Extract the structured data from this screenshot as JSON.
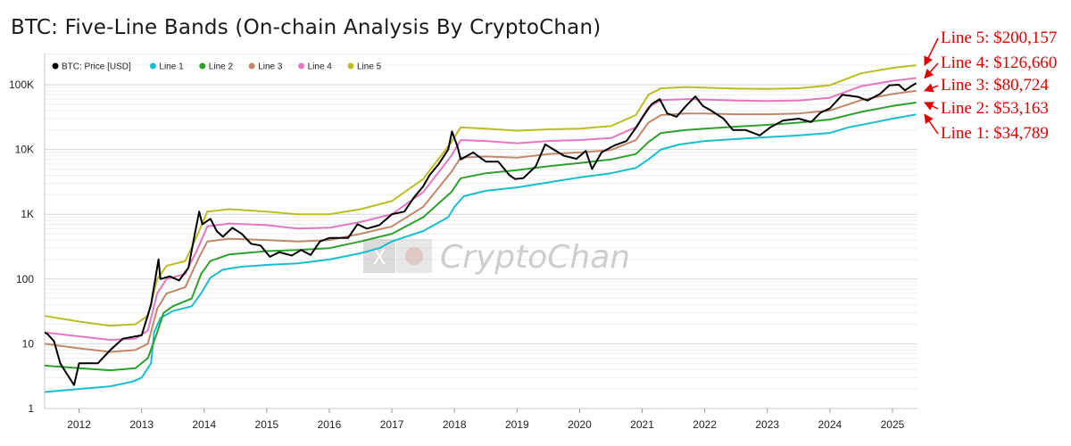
{
  "chart_data": {
    "type": "line",
    "title": "BTC: Five-Line Bands (On-chain Analysis By CryptoChan)",
    "y_scale": "log",
    "ylim": [
      1,
      200000
    ],
    "xlim": [
      2011.45,
      2025.4
    ],
    "grid": true,
    "legend_position": "top-left",
    "y_ticks": [
      {
        "value": 1,
        "label": "1"
      },
      {
        "value": 10,
        "label": "10"
      },
      {
        "value": 100,
        "label": "100"
      },
      {
        "value": 1000,
        "label": "1K"
      },
      {
        "value": 10000,
        "label": "10K"
      },
      {
        "value": 100000,
        "label": "100K"
      }
    ],
    "x_ticks": [
      "2012",
      "2013",
      "2014",
      "2015",
      "2016",
      "2017",
      "2018",
      "2019",
      "2020",
      "2021",
      "2022",
      "2023",
      "2024",
      "2025"
    ],
    "series": [
      {
        "name": "BTC: Price [USD]",
        "color": "#000000",
        "points": [
          [
            2011.45,
            15
          ],
          [
            2011.5,
            14
          ],
          [
            2011.6,
            11
          ],
          [
            2011.7,
            5
          ],
          [
            2011.8,
            3.5
          ],
          [
            2011.92,
            2.3
          ],
          [
            2012.0,
            5
          ],
          [
            2012.15,
            5
          ],
          [
            2012.3,
            5
          ],
          [
            2012.5,
            8
          ],
          [
            2012.7,
            12
          ],
          [
            2012.9,
            13
          ],
          [
            2013.0,
            13.5
          ],
          [
            2013.15,
            40
          ],
          [
            2013.27,
            200
          ],
          [
            2013.3,
            100
          ],
          [
            2013.45,
            110
          ],
          [
            2013.6,
            95
          ],
          [
            2013.75,
            150
          ],
          [
            2013.85,
            500
          ],
          [
            2013.92,
            1100
          ],
          [
            2013.97,
            700
          ],
          [
            2014.1,
            850
          ],
          [
            2014.2,
            550
          ],
          [
            2014.3,
            450
          ],
          [
            2014.45,
            620
          ],
          [
            2014.6,
            500
          ],
          [
            2014.75,
            350
          ],
          [
            2014.9,
            330
          ],
          [
            2015.05,
            220
          ],
          [
            2015.2,
            260
          ],
          [
            2015.4,
            230
          ],
          [
            2015.55,
            280
          ],
          [
            2015.7,
            235
          ],
          [
            2015.85,
            380
          ],
          [
            2016.0,
            430
          ],
          [
            2016.3,
            430
          ],
          [
            2016.45,
            700
          ],
          [
            2016.6,
            600
          ],
          [
            2016.8,
            680
          ],
          [
            2017.0,
            1000
          ],
          [
            2017.2,
            1100
          ],
          [
            2017.35,
            1800
          ],
          [
            2017.5,
            2700
          ],
          [
            2017.6,
            4000
          ],
          [
            2017.75,
            6000
          ],
          [
            2017.9,
            10000
          ],
          [
            2017.96,
            19000
          ],
          [
            2018.05,
            11000
          ],
          [
            2018.1,
            7000
          ],
          [
            2018.3,
            9000
          ],
          [
            2018.5,
            6500
          ],
          [
            2018.7,
            6500
          ],
          [
            2018.88,
            4000
          ],
          [
            2018.97,
            3500
          ],
          [
            2019.1,
            3600
          ],
          [
            2019.3,
            5500
          ],
          [
            2019.45,
            12000
          ],
          [
            2019.55,
            10500
          ],
          [
            2019.75,
            8000
          ],
          [
            2019.95,
            7200
          ],
          [
            2020.1,
            9500
          ],
          [
            2020.2,
            5000
          ],
          [
            2020.35,
            9000
          ],
          [
            2020.55,
            11500
          ],
          [
            2020.75,
            13500
          ],
          [
            2020.92,
            23000
          ],
          [
            2021.02,
            33000
          ],
          [
            2021.15,
            50000
          ],
          [
            2021.28,
            60000
          ],
          [
            2021.4,
            36000
          ],
          [
            2021.55,
            32000
          ],
          [
            2021.7,
            47000
          ],
          [
            2021.85,
            66000
          ],
          [
            2021.97,
            47000
          ],
          [
            2022.1,
            40000
          ],
          [
            2022.3,
            30000
          ],
          [
            2022.45,
            20000
          ],
          [
            2022.65,
            20000
          ],
          [
            2022.88,
            16500
          ],
          [
            2023.05,
            22000
          ],
          [
            2023.25,
            28000
          ],
          [
            2023.5,
            30000
          ],
          [
            2023.7,
            26500
          ],
          [
            2023.85,
            37000
          ],
          [
            2024.0,
            43000
          ],
          [
            2024.2,
            70000
          ],
          [
            2024.45,
            65000
          ],
          [
            2024.6,
            57000
          ],
          [
            2024.8,
            72000
          ],
          [
            2024.95,
            98000
          ],
          [
            2025.1,
            100000
          ],
          [
            2025.2,
            82000
          ],
          [
            2025.3,
            95000
          ],
          [
            2025.38,
            106000
          ]
        ]
      },
      {
        "name": "Line 1",
        "color": "#17becf",
        "points": [
          [
            2011.45,
            1.8
          ],
          [
            2012.0,
            2.0
          ],
          [
            2012.5,
            2.2
          ],
          [
            2012.85,
            2.6
          ],
          [
            2013.0,
            3.0
          ],
          [
            2013.15,
            5
          ],
          [
            2013.2,
            15
          ],
          [
            2013.3,
            25
          ],
          [
            2013.5,
            32
          ],
          [
            2013.8,
            38
          ],
          [
            2013.95,
            60
          ],
          [
            2014.1,
            105
          ],
          [
            2014.3,
            140
          ],
          [
            2014.6,
            155
          ],
          [
            2015.0,
            165
          ],
          [
            2015.5,
            175
          ],
          [
            2016.0,
            200
          ],
          [
            2016.5,
            250
          ],
          [
            2016.8,
            300
          ],
          [
            2017.0,
            380
          ],
          [
            2017.5,
            550
          ],
          [
            2017.9,
            900
          ],
          [
            2018.0,
            1300
          ],
          [
            2018.15,
            1900
          ],
          [
            2018.5,
            2300
          ],
          [
            2019.0,
            2600
          ],
          [
            2019.5,
            3100
          ],
          [
            2020.0,
            3700
          ],
          [
            2020.5,
            4300
          ],
          [
            2020.9,
            5200
          ],
          [
            2021.1,
            7000
          ],
          [
            2021.3,
            10000
          ],
          [
            2021.6,
            12000
          ],
          [
            2022.0,
            13500
          ],
          [
            2022.5,
            14500
          ],
          [
            2023.0,
            15500
          ],
          [
            2023.5,
            16500
          ],
          [
            2024.0,
            18000
          ],
          [
            2024.3,
            22000
          ],
          [
            2024.6,
            25000
          ],
          [
            2025.0,
            30000
          ],
          [
            2025.38,
            34789
          ]
        ]
      },
      {
        "name": "Line 2",
        "color": "#2ca02c",
        "points": [
          [
            2011.45,
            4.6
          ],
          [
            2012.0,
            4.2
          ],
          [
            2012.5,
            3.9
          ],
          [
            2012.9,
            4.2
          ],
          [
            2013.1,
            6
          ],
          [
            2013.25,
            15
          ],
          [
            2013.35,
            30
          ],
          [
            2013.5,
            38
          ],
          [
            2013.8,
            50
          ],
          [
            2013.95,
            120
          ],
          [
            2014.1,
            190
          ],
          [
            2014.4,
            240
          ],
          [
            2015.0,
            270
          ],
          [
            2015.5,
            280
          ],
          [
            2016.0,
            300
          ],
          [
            2016.5,
            380
          ],
          [
            2017.0,
            500
          ],
          [
            2017.5,
            900
          ],
          [
            2017.95,
            2200
          ],
          [
            2018.1,
            3600
          ],
          [
            2018.5,
            4300
          ],
          [
            2019.0,
            4800
          ],
          [
            2019.5,
            5500
          ],
          [
            2020.0,
            6200
          ],
          [
            2020.5,
            7000
          ],
          [
            2020.9,
            8500
          ],
          [
            2021.1,
            13000
          ],
          [
            2021.3,
            18000
          ],
          [
            2021.7,
            20000
          ],
          [
            2022.0,
            21000
          ],
          [
            2022.5,
            22500
          ],
          [
            2023.0,
            24000
          ],
          [
            2023.5,
            26000
          ],
          [
            2024.0,
            29000
          ],
          [
            2024.5,
            38000
          ],
          [
            2025.0,
            47000
          ],
          [
            2025.38,
            53163
          ]
        ]
      },
      {
        "name": "Line 3",
        "color": "#c0876a",
        "points": [
          [
            2011.45,
            10
          ],
          [
            2012.0,
            8.5
          ],
          [
            2012.5,
            7.5
          ],
          [
            2012.9,
            8
          ],
          [
            2013.1,
            10
          ],
          [
            2013.25,
            35
          ],
          [
            2013.4,
            60
          ],
          [
            2013.7,
            75
          ],
          [
            2013.9,
            200
          ],
          [
            2014.05,
            380
          ],
          [
            2014.4,
            420
          ],
          [
            2015.0,
            400
          ],
          [
            2015.5,
            380
          ],
          [
            2016.0,
            400
          ],
          [
            2016.5,
            500
          ],
          [
            2017.0,
            650
          ],
          [
            2017.5,
            1300
          ],
          [
            2017.95,
            4500
          ],
          [
            2018.1,
            7500
          ],
          [
            2018.5,
            7800
          ],
          [
            2019.0,
            7500
          ],
          [
            2019.5,
            8500
          ],
          [
            2020.0,
            9000
          ],
          [
            2020.5,
            9800
          ],
          [
            2020.9,
            14000
          ],
          [
            2021.1,
            26000
          ],
          [
            2021.3,
            34000
          ],
          [
            2021.7,
            36000
          ],
          [
            2022.0,
            36000
          ],
          [
            2022.5,
            35000
          ],
          [
            2023.0,
            35000
          ],
          [
            2023.5,
            36000
          ],
          [
            2024.0,
            40000
          ],
          [
            2024.5,
            58000
          ],
          [
            2025.0,
            72000
          ],
          [
            2025.38,
            80724
          ]
        ]
      },
      {
        "name": "Line 4",
        "color": "#e377c2",
        "points": [
          [
            2011.45,
            15
          ],
          [
            2012.0,
            13
          ],
          [
            2012.5,
            11.5
          ],
          [
            2012.9,
            12
          ],
          [
            2013.1,
            16
          ],
          [
            2013.25,
            60
          ],
          [
            2013.4,
            100
          ],
          [
            2013.7,
            120
          ],
          [
            2013.9,
            300
          ],
          [
            2014.05,
            650
          ],
          [
            2014.4,
            720
          ],
          [
            2015.0,
            680
          ],
          [
            2015.5,
            600
          ],
          [
            2016.0,
            620
          ],
          [
            2016.5,
            760
          ],
          [
            2017.0,
            1000
          ],
          [
            2017.5,
            2200
          ],
          [
            2017.95,
            8000
          ],
          [
            2018.1,
            14000
          ],
          [
            2018.5,
            13500
          ],
          [
            2019.0,
            12500
          ],
          [
            2019.5,
            13500
          ],
          [
            2020.0,
            14000
          ],
          [
            2020.5,
            15000
          ],
          [
            2020.9,
            22000
          ],
          [
            2021.1,
            45000
          ],
          [
            2021.3,
            58000
          ],
          [
            2021.7,
            60000
          ],
          [
            2022.0,
            59000
          ],
          [
            2022.5,
            57000
          ],
          [
            2023.0,
            56000
          ],
          [
            2023.5,
            57000
          ],
          [
            2024.0,
            63000
          ],
          [
            2024.5,
            95000
          ],
          [
            2025.0,
            115000
          ],
          [
            2025.38,
            126660
          ]
        ]
      },
      {
        "name": "Line 5",
        "color": "#bcbd22",
        "points": [
          [
            2011.45,
            27
          ],
          [
            2012.0,
            22
          ],
          [
            2012.5,
            19
          ],
          [
            2012.9,
            20
          ],
          [
            2013.1,
            27
          ],
          [
            2013.25,
            100
          ],
          [
            2013.4,
            160
          ],
          [
            2013.7,
            190
          ],
          [
            2013.9,
            500
          ],
          [
            2014.05,
            1100
          ],
          [
            2014.4,
            1200
          ],
          [
            2015.0,
            1100
          ],
          [
            2015.5,
            1000
          ],
          [
            2016.0,
            1000
          ],
          [
            2016.5,
            1200
          ],
          [
            2017.0,
            1600
          ],
          [
            2017.5,
            3500
          ],
          [
            2017.95,
            13000
          ],
          [
            2018.1,
            22000
          ],
          [
            2018.5,
            21000
          ],
          [
            2019.0,
            19500
          ],
          [
            2019.5,
            20500
          ],
          [
            2020.0,
            21000
          ],
          [
            2020.5,
            23000
          ],
          [
            2020.9,
            34000
          ],
          [
            2021.1,
            70000
          ],
          [
            2021.3,
            88000
          ],
          [
            2021.7,
            92000
          ],
          [
            2022.0,
            90000
          ],
          [
            2022.5,
            87000
          ],
          [
            2023.0,
            86000
          ],
          [
            2023.5,
            88000
          ],
          [
            2024.0,
            98000
          ],
          [
            2024.5,
            150000
          ],
          [
            2025.0,
            182000
          ],
          [
            2025.38,
            200157
          ]
        ]
      }
    ],
    "annotations": [
      {
        "text": "Line 5: $200,157",
        "series": "Line 5",
        "value": 200157
      },
      {
        "text": "Line 4: $126,660",
        "series": "Line 4",
        "value": 126660
      },
      {
        "text": "Line 3: $80,724",
        "series": "Line 3",
        "value": 80724
      },
      {
        "text": "Line 2: $53,163",
        "series": "Line 2",
        "value": 53163
      },
      {
        "text": "Line 1: $34,789",
        "series": "Line 1",
        "value": 34789
      }
    ],
    "annotation_color": "#e00000"
  },
  "watermark": {
    "text": "CryptoChan",
    "x_logo": "X"
  }
}
